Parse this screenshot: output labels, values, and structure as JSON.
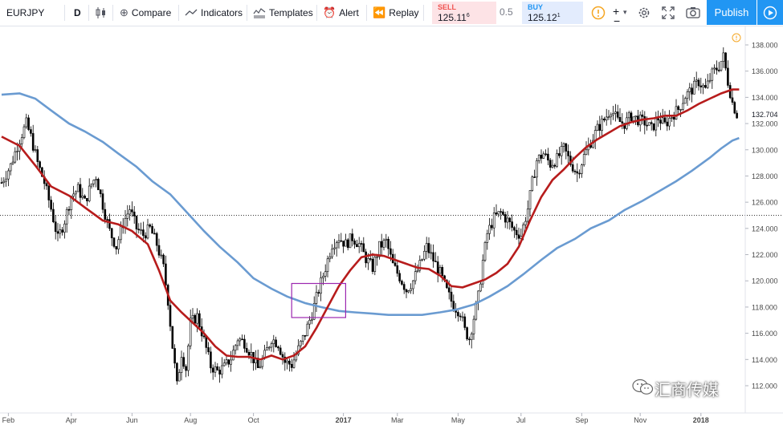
{
  "toolbar": {
    "symbol": "EURJPY",
    "interval": "D",
    "compare": "Compare",
    "indicators": "Indicators",
    "templates": "Templates",
    "alert": "Alert",
    "replay": "Replay",
    "sell_label": "SELL",
    "sell_price": "125.11",
    "sell_sup": "6",
    "spread": "0.5",
    "buy_label": "BUY",
    "buy_price": "125.12",
    "buy_sup": "1",
    "publish": "Publish"
  },
  "colors": {
    "sell": "#ef5350",
    "buy": "#2196f3",
    "ma_fast": "#b71c1c",
    "ma_slow": "#6a9bd1",
    "box": "#9c27b0",
    "candle": "#000000"
  },
  "watermark": "汇商传媒",
  "chart_data": {
    "type": "candlestick",
    "symbol": "EURJPY",
    "interval": "D",
    "ylim": [
      110.5,
      139.0
    ],
    "x_ticks": [
      "Feb",
      "Apr",
      "Jun",
      "Aug",
      "Oct",
      "2017",
      "Mar",
      "May",
      "Jul",
      "Sep",
      "Nov",
      "2018"
    ],
    "y_ticks": [
      "138.000",
      "136.000",
      "134.000",
      "132.000",
      "130.000",
      "128.000",
      "126.000",
      "124.000",
      "122.000",
      "120.000",
      "118.000",
      "116.000",
      "114.000",
      "112.000"
    ],
    "last_price": "132.704",
    "horizontal_line": 125.0,
    "price_path": [
      [
        0,
        127.5
      ],
      [
        4,
        128.8
      ],
      [
        8,
        130.8
      ],
      [
        11,
        132.0
      ],
      [
        13,
        131.0
      ],
      [
        16,
        129.0
      ],
      [
        19,
        127.5
      ],
      [
        22,
        125.5
      ],
      [
        25,
        123.2
      ],
      [
        28,
        124.6
      ],
      [
        31,
        126.5
      ],
      [
        34,
        127.0
      ],
      [
        37,
        126.0
      ],
      [
        40,
        127.4
      ],
      [
        42,
        128.0
      ],
      [
        45,
        125.8
      ],
      [
        48,
        123.8
      ],
      [
        51,
        122.6
      ],
      [
        54,
        124.4
      ],
      [
        57,
        125.5
      ],
      [
        60,
        124.0
      ],
      [
        63,
        123.5
      ],
      [
        66,
        124.0
      ],
      [
        69,
        122.8
      ],
      [
        72,
        121.0
      ],
      [
        74,
        118.5
      ],
      [
        76,
        115.0
      ],
      [
        78,
        112.0
      ],
      [
        80,
        114.5
      ],
      [
        82,
        113.3
      ],
      [
        84,
        116.8
      ],
      [
        87,
        117.3
      ],
      [
        90,
        115.5
      ],
      [
        93,
        113.5
      ],
      [
        96,
        113.1
      ],
      [
        99,
        113.4
      ],
      [
        102,
        114.1
      ],
      [
        105,
        115.6
      ],
      [
        108,
        115.3
      ],
      [
        111,
        114.4
      ],
      [
        114,
        113.3
      ],
      [
        117,
        114.3
      ],
      [
        120,
        115.6
      ],
      [
        123,
        115.2
      ],
      [
        126,
        113.8
      ],
      [
        129,
        113.6
      ],
      [
        132,
        114.8
      ],
      [
        135,
        116.0
      ],
      [
        138,
        117.5
      ],
      [
        141,
        119.3
      ],
      [
        144,
        121.0
      ],
      [
        147,
        122.8
      ],
      [
        150,
        123.3
      ],
      [
        153,
        122.8
      ],
      [
        156,
        123.3
      ],
      [
        159,
        122.8
      ],
      [
        162,
        121.7
      ],
      [
        165,
        121.0
      ],
      [
        168,
        122.6
      ],
      [
        171,
        123.0
      ],
      [
        174,
        121.2
      ],
      [
        177,
        120.3
      ],
      [
        180,
        119.3
      ],
      [
        183,
        120.0
      ],
      [
        186,
        121.2
      ],
      [
        189,
        122.6
      ],
      [
        192,
        121.6
      ],
      [
        195,
        120.6
      ],
      [
        198,
        119.2
      ],
      [
        201,
        118.1
      ],
      [
        204,
        117.6
      ],
      [
        206,
        116.2
      ],
      [
        208,
        115.6
      ],
      [
        210,
        117.2
      ],
      [
        212,
        118.8
      ],
      [
        214,
        121.5
      ],
      [
        216,
        123.6
      ],
      [
        219,
        124.8
      ],
      [
        222,
        125.2
      ],
      [
        225,
        124.6
      ],
      [
        228,
        123.8
      ],
      [
        231,
        123.5
      ],
      [
        234,
        125.5
      ],
      [
        236,
        127.5
      ],
      [
        238,
        129.2
      ],
      [
        241,
        129.7
      ],
      [
        244,
        128.9
      ],
      [
        247,
        129.3
      ],
      [
        250,
        130.1
      ],
      [
        253,
        129.0
      ],
      [
        256,
        128.2
      ],
      [
        259,
        129.5
      ],
      [
        262,
        130.6
      ],
      [
        265,
        131.6
      ],
      [
        268,
        132.3
      ],
      [
        271,
        133.1
      ],
      [
        274,
        132.2
      ],
      [
        277,
        132.0
      ],
      [
        280,
        132.6
      ],
      [
        283,
        132.3
      ],
      [
        286,
        132.1
      ],
      [
        289,
        131.6
      ],
      [
        292,
        132.4
      ],
      [
        295,
        131.9
      ],
      [
        298,
        132.6
      ],
      [
        301,
        133.1
      ],
      [
        304,
        134.1
      ],
      [
        307,
        134.6
      ],
      [
        310,
        135.2
      ],
      [
        313,
        134.6
      ],
      [
        316,
        135.8
      ],
      [
        319,
        136.4
      ],
      [
        321,
        137.1
      ],
      [
        323,
        135.2
      ],
      [
        325,
        133.6
      ],
      [
        327,
        132.7
      ]
    ],
    "series": [
      {
        "type": "line",
        "points": [
          [
            0,
            131.0
          ],
          [
            8,
            130.3
          ],
          [
            15,
            128.8
          ],
          [
            22,
            127.2
          ],
          [
            30,
            126.5
          ],
          [
            37,
            125.6
          ],
          [
            45,
            124.6
          ],
          [
            52,
            124.3
          ],
          [
            58,
            123.8
          ],
          [
            65,
            122.8
          ],
          [
            70,
            120.8
          ],
          [
            75,
            118.5
          ],
          [
            80,
            117.6
          ],
          [
            85,
            116.8
          ],
          [
            90,
            116.0
          ],
          [
            95,
            115.0
          ],
          [
            100,
            114.3
          ],
          [
            105,
            114.2
          ],
          [
            110,
            114.2
          ],
          [
            115,
            114.0
          ],
          [
            120,
            114.3
          ],
          [
            125,
            114.0
          ],
          [
            130,
            114.3
          ],
          [
            135,
            115.0
          ],
          [
            140,
            116.4
          ],
          [
            145,
            118.0
          ],
          [
            150,
            119.6
          ],
          [
            155,
            120.8
          ],
          [
            160,
            121.8
          ],
          [
            165,
            122.0
          ],
          [
            170,
            121.9
          ],
          [
            175,
            121.6
          ],
          [
            180,
            121.3
          ],
          [
            185,
            121.0
          ],
          [
            190,
            120.9
          ],
          [
            195,
            120.4
          ],
          [
            200,
            119.6
          ],
          [
            205,
            119.5
          ],
          [
            210,
            119.8
          ],
          [
            215,
            120.1
          ],
          [
            220,
            120.6
          ],
          [
            225,
            121.3
          ],
          [
            230,
            122.6
          ],
          [
            235,
            124.6
          ],
          [
            240,
            126.4
          ],
          [
            245,
            127.7
          ],
          [
            250,
            128.5
          ],
          [
            255,
            129.4
          ],
          [
            260,
            130.2
          ],
          [
            265,
            130.8
          ],
          [
            270,
            131.3
          ],
          [
            275,
            131.8
          ],
          [
            280,
            132.1
          ],
          [
            285,
            132.3
          ],
          [
            290,
            132.4
          ],
          [
            295,
            132.6
          ],
          [
            300,
            132.6
          ],
          [
            305,
            133.0
          ],
          [
            310,
            133.5
          ],
          [
            315,
            133.9
          ],
          [
            320,
            134.3
          ],
          [
            325,
            134.6
          ],
          [
            328,
            134.6
          ]
        ]
      },
      {
        "type": "line",
        "points": [
          [
            0,
            134.2
          ],
          [
            8,
            134.3
          ],
          [
            15,
            133.9
          ],
          [
            22,
            133.0
          ],
          [
            30,
            132.0
          ],
          [
            37,
            131.4
          ],
          [
            45,
            130.6
          ],
          [
            52,
            129.7
          ],
          [
            60,
            128.7
          ],
          [
            67,
            127.6
          ],
          [
            75,
            126.6
          ],
          [
            82,
            125.3
          ],
          [
            90,
            123.8
          ],
          [
            97,
            122.6
          ],
          [
            105,
            121.4
          ],
          [
            112,
            120.2
          ],
          [
            120,
            119.4
          ],
          [
            127,
            118.8
          ],
          [
            135,
            118.3
          ],
          [
            142,
            118.0
          ],
          [
            150,
            117.7
          ],
          [
            157,
            117.6
          ],
          [
            165,
            117.5
          ],
          [
            172,
            117.4
          ],
          [
            180,
            117.4
          ],
          [
            187,
            117.4
          ],
          [
            195,
            117.6
          ],
          [
            202,
            117.8
          ],
          [
            210,
            118.2
          ],
          [
            217,
            118.8
          ],
          [
            225,
            119.6
          ],
          [
            232,
            120.5
          ],
          [
            240,
            121.6
          ],
          [
            247,
            122.5
          ],
          [
            255,
            123.2
          ],
          [
            262,
            124.0
          ],
          [
            270,
            124.6
          ],
          [
            277,
            125.4
          ],
          [
            285,
            126.1
          ],
          [
            292,
            126.8
          ],
          [
            300,
            127.6
          ],
          [
            307,
            128.4
          ],
          [
            315,
            129.4
          ],
          [
            320,
            130.1
          ],
          [
            325,
            130.7
          ],
          [
            328,
            130.9
          ]
        ]
      }
    ],
    "annotation_box": {
      "x": [
        129,
        153
      ],
      "y": [
        117.2,
        119.8
      ]
    }
  }
}
